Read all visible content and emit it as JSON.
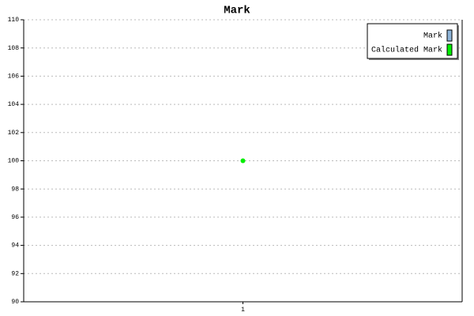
{
  "chart_data": {
    "type": "line",
    "title": "Mark",
    "categories": [
      "1"
    ],
    "series": [
      {
        "name": "Mark",
        "color": "#8eb4d8",
        "values": [
          null
        ]
      },
      {
        "name": "Calculated Mark",
        "color": "#00ee00",
        "values": [
          100
        ]
      }
    ],
    "ylim": [
      90,
      110
    ],
    "yticks": [
      90,
      92,
      94,
      96,
      98,
      100,
      102,
      104,
      106,
      108,
      110
    ],
    "grid": true,
    "legend": "top-right"
  }
}
